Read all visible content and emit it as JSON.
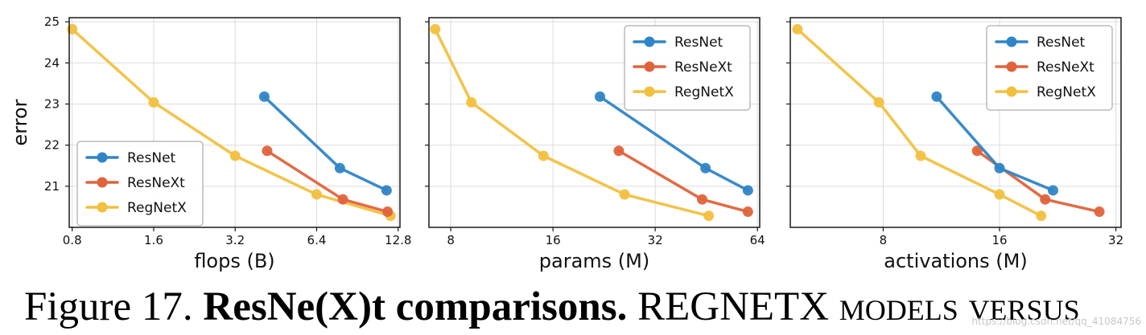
{
  "chart_data": [
    {
      "type": "line",
      "xscale": "log2",
      "xlabel": "flops (B)",
      "ylabel": "error",
      "xticks": [
        0.8,
        1.6,
        3.2,
        6.4,
        12.8
      ],
      "xtick_labels": [
        "0.8",
        "1.6",
        "3.2",
        "6.4",
        "12.8"
      ],
      "xlim": [
        0.78,
        13.0
      ],
      "yticks": [
        21,
        22,
        23,
        24,
        25
      ],
      "ytick_labels": [
        "21",
        "22",
        "23",
        "24",
        "25"
      ],
      "ylim": [
        20.0,
        25.1
      ],
      "grid": true,
      "legend": "lower-left",
      "series": [
        {
          "name": "ResNet",
          "color": "#2f85c6",
          "x": [
            4.1,
            7.8,
            11.6
          ],
          "y": [
            23.18,
            21.44,
            20.9
          ]
        },
        {
          "name": "ResNeXt",
          "color": "#e0633b",
          "x": [
            4.2,
            8.0,
            11.7
          ],
          "y": [
            21.86,
            20.68,
            20.38
          ]
        },
        {
          "name": "RegNetX",
          "color": "#f2c03f",
          "x": [
            0.8,
            1.6,
            3.2,
            6.4,
            12.0
          ],
          "y": [
            24.82,
            23.04,
            21.74,
            20.8,
            20.28
          ]
        }
      ]
    },
    {
      "type": "line",
      "xscale": "log2",
      "xlabel": "params (M)",
      "ylabel": "",
      "xticks": [
        8,
        16,
        32,
        64
      ],
      "xtick_labels": [
        "8",
        "16",
        "32",
        "64"
      ],
      "xlim": [
        6.9,
        65.0
      ],
      "yticks": [
        21,
        22,
        23,
        24,
        25
      ],
      "ytick_labels": [],
      "ylim": [
        20.0,
        25.1
      ],
      "grid": true,
      "legend": "top-right",
      "series": [
        {
          "name": "ResNet",
          "color": "#2f85c6",
          "x": [
            22.0,
            45.0,
            60.0
          ],
          "y": [
            23.18,
            21.44,
            20.9
          ]
        },
        {
          "name": "ResNeXt",
          "color": "#e0633b",
          "x": [
            25.0,
            44.0,
            60.0
          ],
          "y": [
            21.86,
            20.68,
            20.38
          ]
        },
        {
          "name": "RegNetX",
          "color": "#f2c03f",
          "x": [
            7.2,
            9.2,
            15.0,
            26.0,
            46.0
          ],
          "y": [
            24.82,
            23.04,
            21.74,
            20.8,
            20.28
          ]
        }
      ]
    },
    {
      "type": "line",
      "xscale": "log2",
      "xlabel": "activations (M)",
      "ylabel": "",
      "xticks": [
        8,
        16,
        32
      ],
      "xtick_labels": [
        "8",
        "16",
        "32"
      ],
      "xlim": [
        4.6,
        33.0
      ],
      "yticks": [
        21,
        22,
        23,
        24,
        25
      ],
      "ytick_labels": [],
      "ylim": [
        20.0,
        25.1
      ],
      "grid": true,
      "legend": "top-right",
      "series": [
        {
          "name": "ResNet",
          "color": "#2f85c6",
          "x": [
            11.0,
            16.0,
            22.0
          ],
          "y": [
            23.18,
            21.44,
            20.9
          ]
        },
        {
          "name": "ResNeXt",
          "color": "#e0633b",
          "x": [
            14.0,
            21.0,
            29.0
          ],
          "y": [
            21.86,
            20.68,
            20.38
          ]
        },
        {
          "name": "RegNetX",
          "color": "#f2c03f",
          "x": [
            4.8,
            7.8,
            10.0,
            16.0,
            20.5
          ],
          "y": [
            24.82,
            23.04,
            21.74,
            20.8,
            20.28
          ]
        }
      ]
    }
  ],
  "caption": {
    "number": "Figure 17.",
    "bold": "ResNe(X)t comparisons.",
    "rest": "REGNETX models versus"
  },
  "watermark": "https://blog.csdn.net/qq_41084756"
}
